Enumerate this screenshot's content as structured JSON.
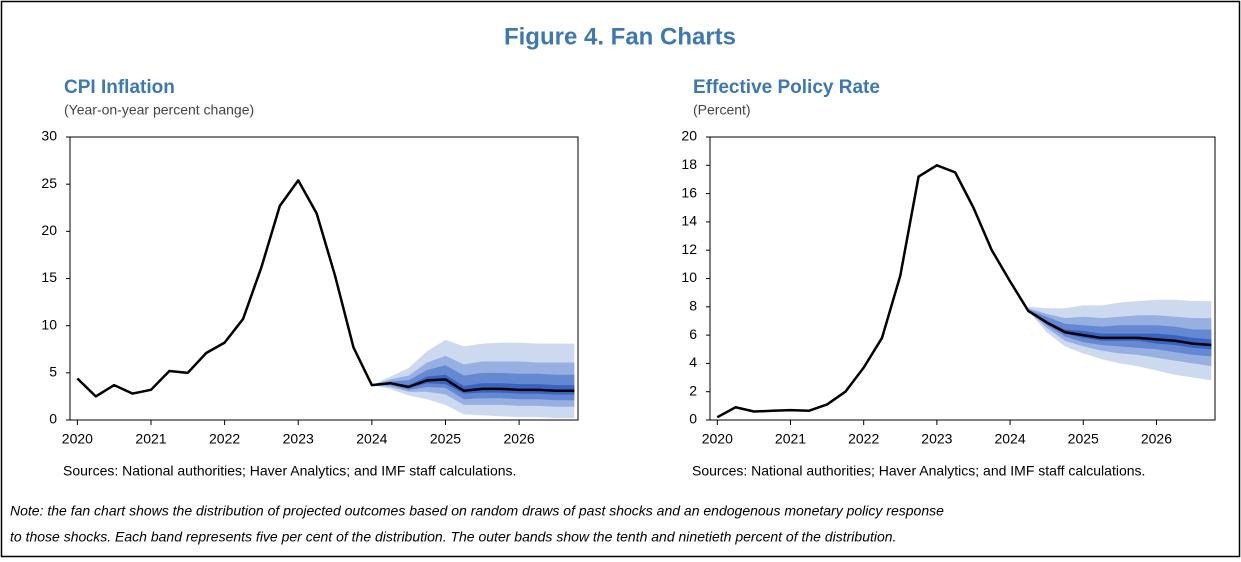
{
  "title": "Figure 4. Fan Charts",
  "chart_data": [
    {
      "type": "fan",
      "title": "CPI Inflation",
      "subtitle": "(Year-on-year percent change)",
      "source": "Sources: National authorities; Haver Analytics; and IMF staff calculations.",
      "xlim": [
        2019.9,
        2026.8
      ],
      "xticks": [
        2020,
        2021,
        2022,
        2023,
        2024,
        2025,
        2026
      ],
      "ylim": [
        0,
        30
      ],
      "yticks": [
        0,
        5,
        10,
        15,
        20,
        25,
        30
      ],
      "x": [
        2020,
        2020.25,
        2020.5,
        2020.75,
        2021,
        2021.25,
        2021.5,
        2021.75,
        2022,
        2022.25,
        2022.5,
        2022.75,
        2023,
        2023.25,
        2023.5,
        2023.75,
        2024,
        2024.25,
        2024.5,
        2024.75,
        2025,
        2025.25,
        2025.5,
        2025.75,
        2026,
        2026.25,
        2026.5,
        2026.75
      ],
      "series": [
        {
          "color": "#000000",
          "values": [
            4.4,
            2.5,
            3.7,
            2.8,
            3.2,
            5.2,
            5.0,
            7.1,
            8.2,
            10.7,
            16.2,
            22.7,
            25.4,
            21.9,
            15.3,
            7.7,
            3.7,
            3.9,
            3.5,
            4.2,
            4.3,
            3.1,
            3.3,
            3.3,
            3.2,
            3.2,
            3.1,
            3.1
          ]
        }
      ],
      "fan_x": [
        2024,
        2024.25,
        2024.5,
        2024.75,
        2025,
        2025.25,
        2025.5,
        2025.75,
        2026,
        2026.25,
        2026.5,
        2026.75
      ],
      "fan": [
        {
          "color": "#cdd9ef",
          "lower": [
            3.7,
            3.3,
            2.6,
            2.2,
            1.6,
            0.6,
            0.5,
            0.4,
            0.3,
            0.3,
            0.2,
            0.2
          ],
          "upper": [
            3.7,
            4.6,
            5.5,
            7.3,
            8.5,
            7.8,
            8.1,
            8.2,
            8.2,
            8.1,
            8.1,
            8.1
          ]
        },
        {
          "color": "#97b0e2",
          "lower": [
            3.7,
            3.5,
            3.0,
            3.0,
            2.7,
            1.6,
            1.6,
            1.6,
            1.5,
            1.5,
            1.4,
            1.4
          ],
          "upper": [
            3.7,
            4.3,
            4.7,
            6.1,
            6.8,
            5.9,
            6.2,
            6.2,
            6.2,
            6.1,
            6.1,
            6.1
          ]
        },
        {
          "color": "#6588d3",
          "lower": [
            3.7,
            3.7,
            3.2,
            3.5,
            3.4,
            2.2,
            2.3,
            2.3,
            2.2,
            2.2,
            2.1,
            2.1
          ],
          "upper": [
            3.7,
            4.1,
            4.2,
            5.3,
            5.8,
            4.7,
            5.0,
            5.0,
            4.9,
            4.9,
            4.8,
            4.8
          ]
        },
        {
          "color": "#3a62c0",
          "lower": [
            3.7,
            3.8,
            3.4,
            3.9,
            3.8,
            2.8,
            2.9,
            2.9,
            2.8,
            2.8,
            2.7,
            2.7
          ],
          "upper": [
            3.7,
            4.0,
            3.7,
            4.6,
            4.8,
            3.6,
            3.9,
            3.9,
            3.8,
            3.8,
            3.7,
            3.7
          ]
        }
      ]
    },
    {
      "type": "fan",
      "title": "Effective Policy Rate",
      "subtitle": "(Percent)",
      "source": "Sources: National authorities; Haver Analytics; and IMF staff calculations.",
      "xlim": [
        2019.9,
        2026.8
      ],
      "xticks": [
        2020,
        2021,
        2022,
        2023,
        2024,
        2025,
        2026
      ],
      "ylim": [
        0,
        20
      ],
      "yticks": [
        0,
        2,
        4,
        6,
        8,
        10,
        12,
        14,
        16,
        18,
        20
      ],
      "x": [
        2020,
        2020.25,
        2020.5,
        2020.75,
        2021,
        2021.25,
        2021.5,
        2021.75,
        2022,
        2022.25,
        2022.5,
        2022.75,
        2023,
        2023.25,
        2023.5,
        2023.75,
        2024,
        2024.25,
        2024.5,
        2024.75,
        2025,
        2025.25,
        2025.5,
        2025.75,
        2026,
        2026.25,
        2026.5,
        2026.75
      ],
      "series": [
        {
          "color": "#000000",
          "values": [
            0.2,
            0.9,
            0.6,
            0.65,
            0.7,
            0.65,
            1.1,
            2.0,
            3.7,
            5.8,
            10.2,
            17.2,
            18.0,
            17.5,
            15.0,
            12.0,
            9.8,
            7.7,
            6.9,
            6.2,
            6.0,
            5.8,
            5.8,
            5.8,
            5.7,
            5.6,
            5.4,
            5.3
          ]
        }
      ],
      "fan_x": [
        2024.25,
        2024.5,
        2024.75,
        2025,
        2025.25,
        2025.5,
        2025.75,
        2026,
        2026.25,
        2026.5,
        2026.75
      ],
      "fan": [
        {
          "color": "#cdd9ef",
          "lower": [
            7.7,
            6.2,
            5.2,
            4.7,
            4.3,
            4.0,
            3.8,
            3.5,
            3.2,
            3.0,
            2.8
          ],
          "upper": [
            8.0,
            7.9,
            7.9,
            8.1,
            8.1,
            8.3,
            8.4,
            8.5,
            8.5,
            8.4,
            8.4
          ]
        },
        {
          "color": "#97b0e2",
          "lower": [
            7.7,
            6.5,
            5.6,
            5.2,
            4.9,
            4.7,
            4.6,
            4.4,
            4.2,
            4.0,
            3.8
          ],
          "upper": [
            7.9,
            7.5,
            7.2,
            7.3,
            7.2,
            7.3,
            7.4,
            7.4,
            7.3,
            7.2,
            7.2
          ]
        },
        {
          "color": "#6588d3",
          "lower": [
            7.7,
            6.7,
            5.9,
            5.5,
            5.3,
            5.2,
            5.1,
            5.0,
            4.8,
            4.6,
            4.5
          ],
          "upper": [
            7.8,
            7.3,
            6.8,
            6.7,
            6.6,
            6.7,
            6.7,
            6.7,
            6.6,
            6.4,
            6.4
          ]
        },
        {
          "color": "#3a62c0",
          "lower": [
            7.7,
            6.8,
            6.1,
            5.8,
            5.6,
            5.6,
            5.6,
            5.4,
            5.3,
            5.1,
            5.0
          ],
          "upper": [
            7.7,
            7.0,
            6.4,
            6.3,
            6.1,
            6.1,
            6.1,
            6.1,
            6.0,
            5.8,
            5.7
          ]
        }
      ]
    }
  ],
  "note": [
    "Note: the fan chart shows the distribution of projected outcomes based on random draws of past shocks and an endogenous monetary policy response",
    "to those shocks. Each band represents five per cent of the distribution. The outer bands show the tenth and ninetieth percent of the distribution."
  ]
}
